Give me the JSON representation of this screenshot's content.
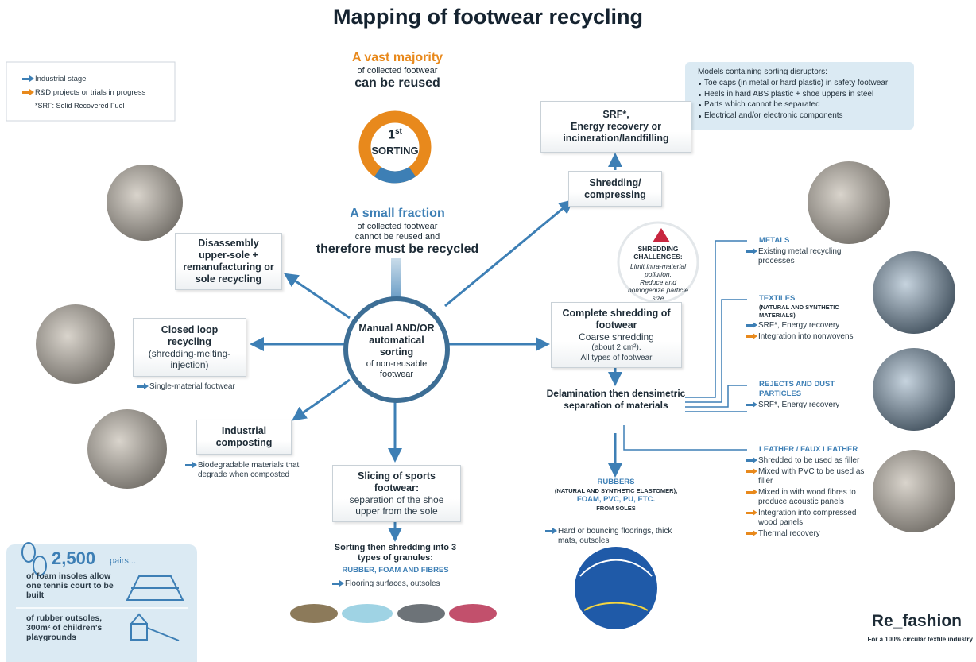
{
  "title": "Mapping of footwear recycling",
  "legend": {
    "items": [
      {
        "text": "Industrial stage",
        "color": "#3d7fb5"
      },
      {
        "text": "R&D projects or trials in progress",
        "color": "#e8891c"
      }
    ],
    "note": "*SRF: Solid Recovered Fuel"
  },
  "majority": {
    "lead": "A vast majority",
    "sub": "of collected footwear",
    "main": "can be reused"
  },
  "sorting": {
    "ordinal": "1",
    "suffix": "st",
    "label": "SORTING"
  },
  "fraction": {
    "lead": "A small fraction",
    "sub": "of collected footwear cannot be reused and",
    "main": "therefore must be recycled"
  },
  "center": {
    "title": "Manual AND/OR automatical sorting",
    "sub": "of non-reusable footwear"
  },
  "disassembly": {
    "title": "Disassembly upper-sole + remanufacturing or sole recycling"
  },
  "closed_loop": {
    "title": "Closed loop recycling",
    "detail": "(shredding-melting-injection)",
    "note": "Single-material footwear"
  },
  "composting": {
    "title": "Industrial composting",
    "note": "Biodegradable materials that degrade when composted"
  },
  "slicing": {
    "title": "Slicing of sports footwear:",
    "detail": "separation of the shoe upper from the sole"
  },
  "granules": {
    "title": "Sorting then shredding into 3 types of granules:",
    "types": "RUBBER, FOAM AND FIBRES",
    "note": "Flooring surfaces, outsoles"
  },
  "srf": {
    "title": "SRF*,",
    "detail": "Energy recovery or incineration/landfilling"
  },
  "disruptors": {
    "title": "Models containing sorting disruptors:",
    "items": [
      "Toe caps (in metal or hard plastic) in safety footwear",
      "Heels in hard ABS plastic + shoe uppers in steel",
      "Parts which cannot be separated",
      "Electrical and/or electronic components"
    ]
  },
  "shredding": {
    "title": "Shredding/ compressing"
  },
  "challenges": {
    "title": "SHREDDING CHALLENGES:",
    "items": [
      "Limit intra-material pollution,",
      "Reduce and homogenize particle size"
    ]
  },
  "complete": {
    "title": "Complete shredding of footwear",
    "sub": "Coarse shredding",
    "detail": "(about 2 cm²).",
    "extra": "All types of footwear"
  },
  "delamination": {
    "title": "Delamination then densimetric separation of materials"
  },
  "outputs": [
    {
      "title": "METALS",
      "items": [
        {
          "text": "Existing metal recycling processes",
          "color": "#3d7fb5"
        }
      ]
    },
    {
      "title": "TEXTILES",
      "subtitle": "(NATURAL AND SYNTHETIC MATERIALS)",
      "items": [
        {
          "text": "SRF*, Energy recovery",
          "color": "#3d7fb5"
        },
        {
          "text": "Integration into nonwovens",
          "color": "#e8891c"
        }
      ]
    },
    {
      "title": "REJECTS AND DUST PARTICLES",
      "items": [
        {
          "text": "SRF*, Energy recovery",
          "color": "#3d7fb5"
        }
      ]
    },
    {
      "title": "LEATHER / FAUX LEATHER",
      "items": [
        {
          "text": "Shredded to be used as filler",
          "color": "#3d7fb5"
        },
        {
          "text": "Mixed with PVC to be used as filler",
          "color": "#e8891c"
        },
        {
          "text": "Mixed in with wood fibres to produce acoustic panels",
          "color": "#e8891c"
        },
        {
          "text": "Integration into compressed wood panels",
          "color": "#e8891c"
        },
        {
          "text": "Thermal recovery",
          "color": "#e8891c"
        }
      ]
    }
  ],
  "rubbers": {
    "title": "RUBBERS",
    "subtitle": "(NATURAL AND SYNTHETIC ELASTOMER),",
    "types": "FOAM, PVC, PU, ETC.",
    "from": "FROM SOLES",
    "items": [
      {
        "text": "Hard or bouncing floorings, thick mats, outsoles",
        "color": "#3d7fb5"
      }
    ]
  },
  "stats": {
    "figure": "2,500",
    "unit": "pairs...",
    "facts": [
      "of foam insoles allow one tennis court to be built",
      "of rubber outsoles, 300m² of children's playgrounds"
    ]
  },
  "brand": {
    "name": "Re_fashion",
    "tagline": "For a 100% circular textile industry"
  }
}
